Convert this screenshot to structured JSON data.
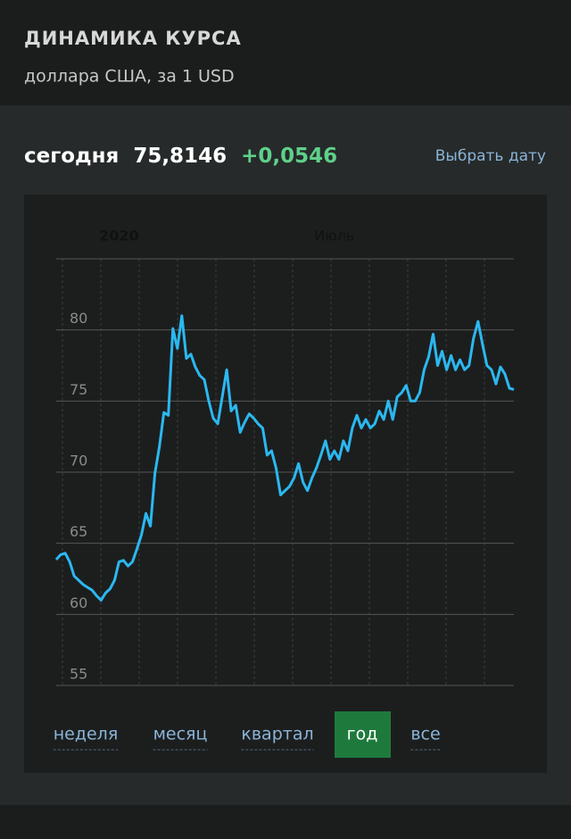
{
  "header": {
    "title": "ДИНАМИКА КУРСА",
    "subtitle": "доллара США, за 1 USD"
  },
  "today": {
    "label": "сегодня",
    "value": "75,8146",
    "change": "+0,0546",
    "link": "Выбрать дату"
  },
  "periods": {
    "items": [
      "неделя",
      "месяц",
      "квартал",
      "год",
      "все"
    ],
    "active": 3
  },
  "chart_data": {
    "type": "line",
    "values": [
      63.85,
      64.2,
      64.3,
      63.7,
      62.7,
      62.4,
      62.1,
      61.9,
      61.7,
      61.3,
      61.0,
      61.5,
      61.8,
      62.4,
      63.7,
      63.8,
      63.4,
      63.7,
      64.6,
      65.6,
      67.1,
      66.2,
      69.9,
      71.8,
      74.2,
      74.0,
      80.1,
      78.7,
      81.0,
      78.0,
      78.3,
      77.4,
      76.8,
      76.5,
      75.0,
      73.8,
      73.4,
      75.3,
      77.2,
      74.3,
      74.7,
      72.8,
      73.5,
      74.1,
      73.8,
      73.4,
      73.1,
      71.2,
      71.5,
      70.3,
      68.4,
      68.7,
      69.0,
      69.6,
      70.6,
      69.3,
      68.7,
      69.6,
      70.3,
      71.2,
      72.2,
      70.9,
      71.5,
      70.9,
      72.2,
      71.5,
      73.1,
      74.0,
      73.1,
      73.7,
      73.1,
      73.4,
      74.3,
      73.7,
      75.0,
      73.7,
      75.3,
      75.6,
      76.1,
      75.0,
      75.0,
      75.6,
      77.2,
      78.1,
      79.7,
      77.5,
      78.5,
      77.2,
      78.2,
      77.2,
      77.9,
      77.2,
      77.5,
      79.4,
      80.6,
      79.0,
      77.5,
      77.2,
      76.2,
      77.4,
      76.9,
      75.9,
      75.8146
    ],
    "color": "#2bb8f0",
    "ylim": [
      55,
      85
    ],
    "yticks": [
      55,
      60,
      65,
      70,
      75,
      80
    ],
    "xticks": [
      {
        "value": 14,
        "label": "2020"
      },
      {
        "value": 62,
        "label": "Июль"
      }
    ],
    "grid": true
  }
}
